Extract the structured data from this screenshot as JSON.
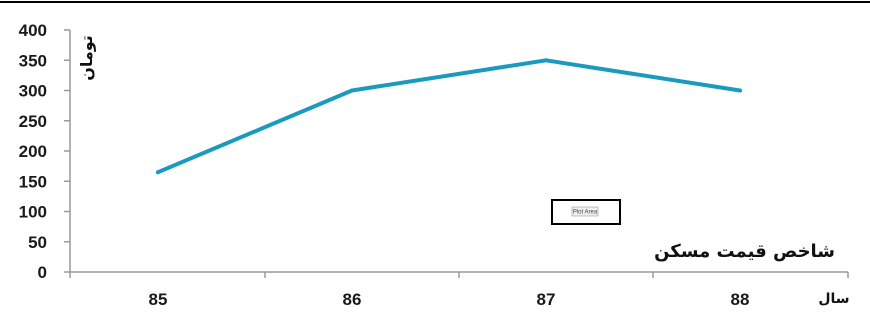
{
  "chart_data": {
    "type": "line",
    "categories": [
      "85",
      "86",
      "87",
      "88"
    ],
    "series": [
      {
        "name": "شاخص قیمت مسکن",
        "values": [
          165,
          300,
          350,
          300
        ],
        "color": "#1b9ac0"
      }
    ],
    "title": "",
    "xlabel": "سال",
    "ylabel": "تومان",
    "ylim": [
      0,
      400
    ],
    "yticks": [
      "0",
      "50",
      "100",
      "150",
      "200",
      "250",
      "300",
      "350",
      "400"
    ],
    "grid": false,
    "legend": "none"
  },
  "tooltip": {
    "label": "Plot Area"
  },
  "frame_color": "#000000",
  "axis_color": "#9a9a9a"
}
